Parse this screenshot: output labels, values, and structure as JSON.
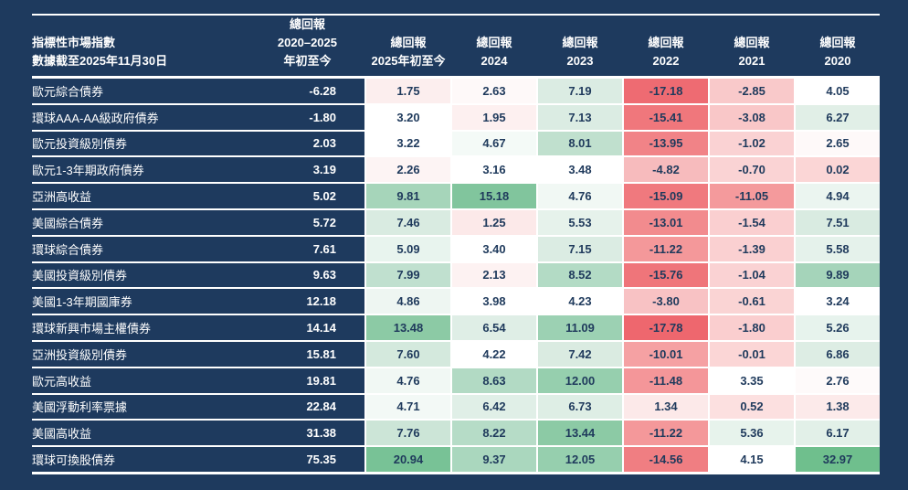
{
  "table": {
    "header": {
      "index_line1": "指標性市場指數",
      "index_line2": "數據截至2025年11月30日",
      "cumulative_line1": "總回報",
      "cumulative_line2": "2020–2025",
      "cumulative_line3": "年初至今",
      "year_cols": [
        {
          "line1": "總回報",
          "line2": "2025年初至今"
        },
        {
          "line1": "總回報",
          "line2": "2024"
        },
        {
          "line1": "總回報",
          "line2": "2023"
        },
        {
          "line1": "總回報",
          "line2": "2022"
        },
        {
          "line1": "總回報",
          "line2": "2021"
        },
        {
          "line1": "總回報",
          "line2": "2020"
        }
      ]
    }
  },
  "chart_data": {
    "type": "heatmap",
    "row_header": "指標性市場指數 數據截至2025年11月30日",
    "columns": [
      "總回報 2020–2025 年初至今",
      "總回報 2025年初至今",
      "總回報 2024",
      "總回報 2023",
      "總回報 2022",
      "總回報 2021",
      "總回報 2020"
    ],
    "rows": [
      {
        "name": "歐元綜合債券",
        "cumulative": "-6.28",
        "values": [
          "1.75",
          "2.63",
          "7.19",
          "-17.18",
          "-2.85",
          "4.05"
        ]
      },
      {
        "name": "環球AAA-AA級政府債券",
        "cumulative": "-1.80",
        "values": [
          "3.20",
          "1.95",
          "7.13",
          "-15.41",
          "-3.08",
          "6.27"
        ]
      },
      {
        "name": "歐元投資級別債券",
        "cumulative": "2.03",
        "values": [
          "3.22",
          "4.67",
          "8.01",
          "-13.95",
          "-1.02",
          "2.65"
        ]
      },
      {
        "name": "歐元1-3年期政府債券",
        "cumulative": "3.19",
        "values": [
          "2.26",
          "3.16",
          "3.48",
          "-4.82",
          "-0.70",
          "0.02"
        ]
      },
      {
        "name": "亞洲高收益",
        "cumulative": "5.02",
        "values": [
          "9.81",
          "15.18",
          "4.76",
          "-15.09",
          "-11.05",
          "4.94"
        ]
      },
      {
        "name": "美國綜合債券",
        "cumulative": "5.72",
        "values": [
          "7.46",
          "1.25",
          "5.53",
          "-13.01",
          "-1.54",
          "7.51"
        ]
      },
      {
        "name": "環球綜合債券",
        "cumulative": "7.61",
        "values": [
          "5.09",
          "3.40",
          "7.15",
          "-11.22",
          "-1.39",
          "5.58"
        ]
      },
      {
        "name": "美國投資級別債券",
        "cumulative": "9.63",
        "values": [
          "7.99",
          "2.13",
          "8.52",
          "-15.76",
          "-1.04",
          "9.89"
        ]
      },
      {
        "name": "美國1-3年期國庫券",
        "cumulative": "12.18",
        "values": [
          "4.86",
          "3.98",
          "4.23",
          "-3.80",
          "-0.61",
          "3.24"
        ]
      },
      {
        "name": "環球新興市場主權債券",
        "cumulative": "14.14",
        "values": [
          "13.48",
          "6.54",
          "11.09",
          "-17.78",
          "-1.80",
          "5.26"
        ]
      },
      {
        "name": "亞洲投資級別債券",
        "cumulative": "15.81",
        "values": [
          "7.60",
          "4.22",
          "7.42",
          "-10.01",
          "-0.01",
          "6.86"
        ]
      },
      {
        "name": "歐元高收益",
        "cumulative": "19.81",
        "values": [
          "4.76",
          "8.63",
          "12.00",
          "-11.48",
          "3.35",
          "2.76"
        ]
      },
      {
        "name": "美國浮動利率票據",
        "cumulative": "22.84",
        "values": [
          "4.71",
          "6.42",
          "6.73",
          "1.34",
          "0.52",
          "1.38"
        ]
      },
      {
        "name": "美國高收益",
        "cumulative": "31.38",
        "values": [
          "7.76",
          "8.22",
          "13.44",
          "-11.22",
          "5.36",
          "6.17"
        ]
      },
      {
        "name": "環球可換股債券",
        "cumulative": "75.35",
        "values": [
          "20.94",
          "9.37",
          "12.05",
          "-14.56",
          "4.15",
          "32.97"
        ]
      }
    ],
    "legend_position": "none",
    "grid": "white-gaps"
  },
  "colors": {
    "background": "#1e3a5e",
    "rule": "#ffffff",
    "header_text": "#ffffff",
    "row_label_text": "#ffffff",
    "value_text": "#1f3a5c",
    "heatmap_negative_max": "#ee676e",
    "heatmap_mid": "#ffffff",
    "heatmap_positive_max": "#6fbf8d"
  },
  "heatmap": {
    "stops": [
      [
        -17.78,
        "#ee676e"
      ],
      [
        -15.0,
        "#f07a7f"
      ],
      [
        -13.0,
        "#f28b8e"
      ],
      [
        -11.0,
        "#f49a9c"
      ],
      [
        -10.0,
        "#f5a1a3"
      ],
      [
        -4.8,
        "#f7bbbd"
      ],
      [
        -2.8,
        "#f9c9ca"
      ],
      [
        -1.0,
        "#fad2d3"
      ],
      [
        0.0,
        "#fbd6d6"
      ],
      [
        0.6,
        "#fce2e2"
      ],
      [
        1.5,
        "#fcebeb"
      ],
      [
        2.2,
        "#fdf3f3"
      ],
      [
        3.1,
        "#ffffff"
      ],
      [
        4.35,
        "#ffffff"
      ],
      [
        5.0,
        "#e9f4ee"
      ],
      [
        7.5,
        "#d9ebe1"
      ],
      [
        8.2,
        "#b6dcc7"
      ],
      [
        10.0,
        "#a4d4b9"
      ],
      [
        12.0,
        "#96cfae"
      ],
      [
        14.0,
        "#88c8a2"
      ],
      [
        16.0,
        "#7cc399"
      ],
      [
        33.0,
        "#6fbf8d"
      ]
    ]
  }
}
